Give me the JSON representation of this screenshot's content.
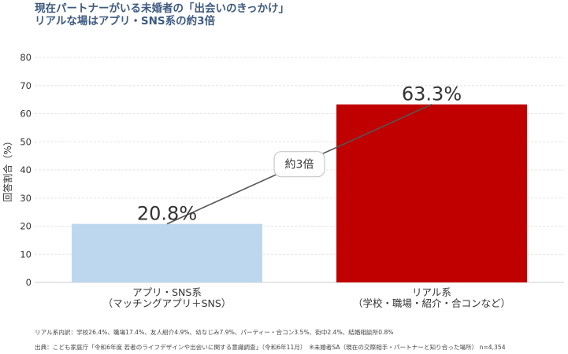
{
  "title": {
    "line1": "現在パートナーがいる未婚者の「出会いのきっかけ」",
    "line2": "リアルな場はアプリ・SNS系の約3倍"
  },
  "chart_data": {
    "type": "bar",
    "categories": [
      [
        "アプリ・SNS系",
        "（マッチングアプリ＋SNS）"
      ],
      [
        "リアル系",
        "（学校・職場・紹介・合コンなど）"
      ]
    ],
    "values": [
      20.8,
      63.3
    ],
    "value_labels": [
      "20.8%",
      "63.3%"
    ],
    "colors": [
      "#bdd7ee",
      "#c00000"
    ],
    "ylabel": "回答割合（%）",
    "ylim": [
      0,
      80
    ],
    "yticks": [
      0,
      10,
      20,
      30,
      40,
      50,
      60,
      70,
      80
    ],
    "grid": true,
    "annotation": {
      "text": "約3倍",
      "connects": "bar tops"
    }
  },
  "footnotes": {
    "line1": "リアル系内訳：学校26.4%、職場17.4%、友人紹介4.9%、幼なじみ7.9%、パーティー・合コン3.5%、街中2.4%、結婚相談所0.8%",
    "line2": "出典：こども家庭庁「令和6年度 若者のライフデザインや出会いに関する意識調査」（令和6年11月）　※未婚者SA（現在の交際相手・パートナーと知り合った場所） n=4,354"
  }
}
